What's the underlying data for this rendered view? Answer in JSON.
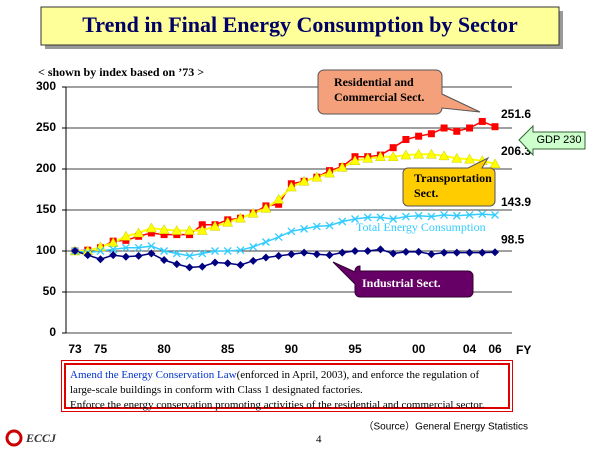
{
  "chart_data": {
    "type": "line",
    "title": "Trend in Final Energy Consumption by Sector",
    "subtitle": "< shown by index based on ’73 >",
    "categories": [
      "73",
      null,
      "75",
      null,
      null,
      null,
      null,
      "80",
      null,
      null,
      null,
      null,
      "85",
      null,
      null,
      null,
      null,
      "90",
      null,
      null,
      null,
      null,
      "95",
      null,
      null,
      null,
      null,
      "00",
      null,
      null,
      null,
      "04",
      null,
      "06"
    ],
    "x_label": "FY",
    "ylim": [
      0,
      300
    ],
    "yticks": [
      0,
      50,
      100,
      150,
      200,
      250,
      300
    ],
    "grid": true,
    "series": [
      {
        "name": "Residential and Commercial Sect.",
        "color": "#ff0000",
        "marker": "square",
        "values": [
          100,
          101,
          104,
          112,
          113,
          118,
          122,
          120,
          120,
          120,
          132,
          132,
          138,
          140,
          146,
          155,
          157,
          182,
          185,
          190,
          198,
          203,
          215,
          215,
          217,
          226,
          236,
          240,
          243,
          250,
          246,
          250,
          258,
          251.6
        ]
      },
      {
        "name": "Transportation Sect.",
        "color": "#ffff00",
        "marker": "triangle",
        "values": [
          100,
          100,
          105,
          110,
          118,
          122,
          128,
          126,
          125,
          125,
          125,
          130,
          135,
          140,
          146,
          152,
          163,
          178,
          185,
          190,
          195,
          202,
          210,
          213,
          215,
          215,
          217,
          218,
          218,
          216,
          213,
          212,
          210,
          206.3
        ]
      },
      {
        "name": "Total Energy Consumption",
        "color": "#33ccff",
        "marker": "cross",
        "values": [
          100,
          98,
          100,
          102,
          104,
          104,
          106,
          100,
          97,
          94,
          97,
          100,
          100,
          101,
          105,
          111,
          117,
          124,
          127,
          130,
          131,
          136,
          139,
          141,
          141,
          139,
          142,
          143,
          142,
          144,
          143,
          144,
          145,
          143.9
        ]
      },
      {
        "name": "Industrial Sect.",
        "color": "#000080",
        "marker": "diamond",
        "values": [
          100,
          95,
          90,
          95,
          93,
          94,
          97,
          89,
          84,
          80,
          81,
          86,
          85,
          83,
          88,
          92,
          94,
          96,
          98,
          96,
          95,
          98,
          100,
          100,
          102,
          97,
          99,
          99,
          96,
          98,
          98,
          98,
          98,
          98.5
        ]
      }
    ],
    "gdp_label": "GDP 230"
  },
  "note": {
    "highlight": "Amend the Energy Conservation Law",
    "rest": "(enforced in April, 2003), and enforce the regulation of large-scale buildings in conform with Class 1 designated factories.",
    "line2": "Enforce the energy conservation promoting activities of the residential and commercial sector."
  },
  "footer": {
    "source": "（Source）General Energy Statistics",
    "page": "4",
    "logo": "ECCJ"
  }
}
